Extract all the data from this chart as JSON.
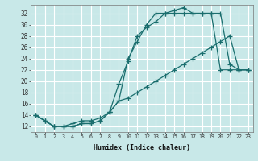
{
  "xlabel": "Humidex (Indice chaleur)",
  "background_color": "#c8e8e8",
  "grid_color": "#ffffff",
  "line_color": "#1a6e6e",
  "xlim": [
    -0.5,
    23.5
  ],
  "ylim": [
    11,
    33.5
  ],
  "yticks": [
    12,
    14,
    16,
    18,
    20,
    22,
    24,
    26,
    28,
    30,
    32
  ],
  "xticks": [
    0,
    1,
    2,
    3,
    4,
    5,
    6,
    7,
    8,
    9,
    10,
    11,
    12,
    13,
    14,
    15,
    16,
    17,
    18,
    19,
    20,
    21,
    22,
    23
  ],
  "line1_x": [
    0,
    1,
    2,
    3,
    4,
    5,
    6,
    7,
    8,
    9,
    10,
    11,
    12,
    13,
    14,
    15,
    16,
    17,
    18,
    19,
    20,
    21,
    22,
    23
  ],
  "line1_y": [
    14,
    13,
    12,
    12,
    12,
    12.5,
    12.5,
    13,
    14.5,
    19.5,
    23.5,
    28,
    29.5,
    30.5,
    32,
    32.5,
    33,
    32,
    32,
    32,
    32,
    23,
    22,
    22
  ],
  "line2_x": [
    0,
    1,
    2,
    3,
    4,
    5,
    6,
    7,
    8,
    9,
    10,
    11,
    12,
    13,
    14,
    15,
    16,
    17,
    18,
    19,
    20,
    21,
    22,
    23
  ],
  "line2_y": [
    14,
    13,
    12,
    12,
    12,
    12.5,
    12.5,
    13,
    14.5,
    16.5,
    24,
    27,
    30,
    32,
    32,
    32,
    32,
    32,
    32,
    32,
    22,
    22,
    22,
    22
  ],
  "line3_x": [
    0,
    1,
    2,
    3,
    4,
    5,
    6,
    7,
    8,
    9,
    10,
    11,
    12,
    13,
    14,
    15,
    16,
    17,
    18,
    19,
    20,
    21,
    22,
    23
  ],
  "line3_y": [
    14,
    13,
    12,
    12,
    12.5,
    13,
    13,
    13.5,
    14.5,
    16.5,
    17,
    18,
    19,
    20,
    21,
    22,
    23,
    24,
    25,
    26,
    27,
    28,
    22,
    22
  ]
}
